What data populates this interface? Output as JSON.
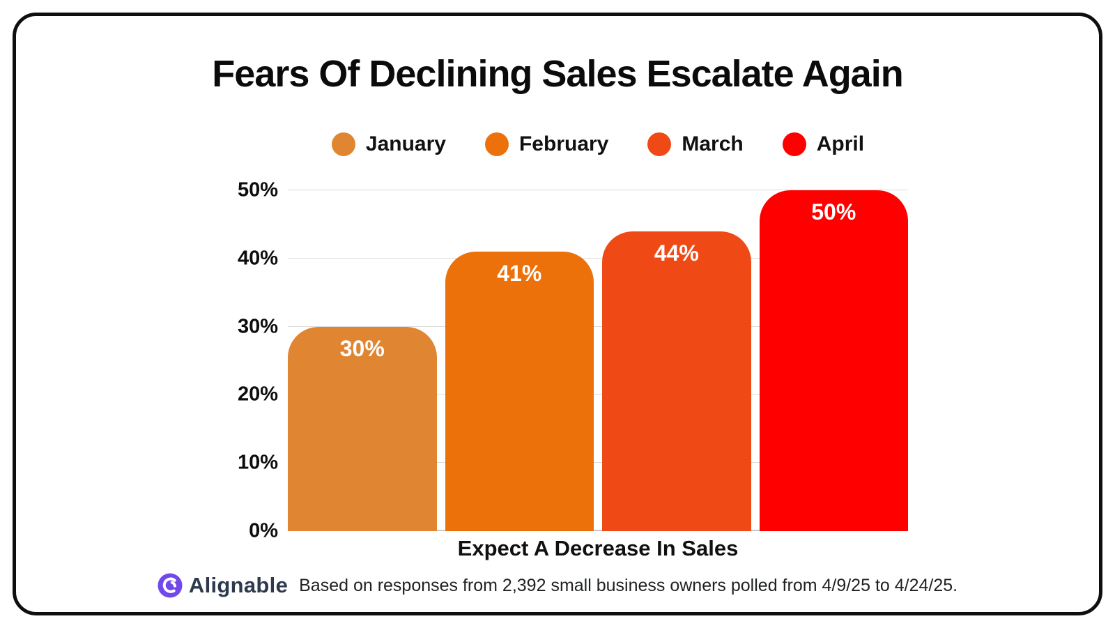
{
  "card": {
    "title": "Fears Of Declining Sales Escalate Again"
  },
  "legend": {
    "items": [
      {
        "label": "January",
        "color": "#E08632"
      },
      {
        "label": "February",
        "color": "#EC710A"
      },
      {
        "label": "March",
        "color": "#EF4A16"
      },
      {
        "label": "April",
        "color": "#FE0000"
      }
    ]
  },
  "chart_data": {
    "type": "bar",
    "title": "Fears Of Declining Sales Escalate Again",
    "categories": [
      "January",
      "February",
      "March",
      "April"
    ],
    "values": [
      30,
      41,
      44,
      50
    ],
    "value_labels": [
      "30%",
      "41%",
      "44%",
      "50%"
    ],
    "bar_colors": [
      "#E08632",
      "#EC710A",
      "#EF4A16",
      "#FE0000"
    ],
    "xlabel": "Expect A Decrease In Sales",
    "ylabel": "",
    "ylim": [
      0,
      50
    ],
    "yticks": [
      0,
      10,
      20,
      30,
      40,
      50
    ],
    "ytick_labels": [
      "0%",
      "10%",
      "20%",
      "30%",
      "40%",
      "50%"
    ],
    "grid": true,
    "legend_position": "top"
  },
  "footer": {
    "brand": "Alignable",
    "brand_icon": "alignable-logo-icon",
    "icon_color": "#7149EB",
    "text": "Based on responses from 2,392 small business owners polled from 4/9/25 to 4/24/25."
  }
}
